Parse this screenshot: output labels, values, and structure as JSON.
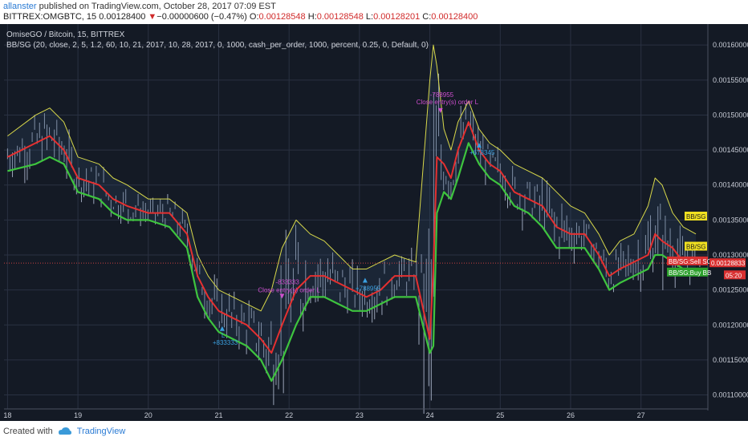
{
  "header": {
    "author": "allanster",
    "published": " published on TradingView.com, October 28, 2017 07:09 EST",
    "symbol": "BITTREX:OMGBTC, 15",
    "last": "0.00128400",
    "change": "−0.00000600 (−0.47%)",
    "open_label": "O:",
    "open": "0.00128548",
    "high_label": "H:",
    "high": "0.00128548",
    "low_label": "L:",
    "low": "0.00128201",
    "close_label": "C:",
    "close": "0.00128400"
  },
  "legend": {
    "title": "OmiseGO / Bitcoin, 15, BITTREX",
    "indicator": "BB/SG (20, close, 2, 5, 1.2, 60, 10, 21, 2017, 10, 28, 2017, 0, 1000, cash_per_order, 1000, percent, 0.25, 0, Default, 0)"
  },
  "footer": {
    "created_with": "Created with",
    "brand": "TradingView"
  },
  "colors": {
    "background": "#141a25",
    "grid": "#2a3142",
    "upper_band": "#d8d84a",
    "lower_band": "#3ec43e",
    "basis": "#e53030",
    "price_bar": "#9aa4b8",
    "current_line": "#c94040",
    "buy_marker": "#3aa0e0",
    "sell_marker": "#d04fd0"
  },
  "annotations": {
    "sell1": {
      "value": "-833333",
      "text": "Close entry(s) order L"
    },
    "buy1": {
      "label": "L",
      "value": "+833333"
    },
    "buy2": {
      "value": "+788955"
    },
    "sell2": {
      "value": "-788955",
      "text": "Close entry(s) order L"
    },
    "buy3": {
      "value": "+678345"
    }
  },
  "price_tags": {
    "bbsg_upper": "BB/SG",
    "bbsg_lower": "BB/SG",
    "sell_sg": "BB/SG:Sell SG",
    "current_price": "0.00128833",
    "buy_bb": "BB/SG:Buy BB",
    "countdown": "05:20"
  },
  "chart_data": {
    "type": "line",
    "ylim": [
      0.00108,
      0.00163
    ],
    "y_ticks": [
      "0.00160000",
      "0.00155000",
      "0.00150000",
      "0.00145000",
      "0.00140000",
      "0.00135000",
      "0.00130000",
      "0.00125000",
      "0.00120000",
      "0.00115000",
      "0.00110000"
    ],
    "x_ticks": [
      "18",
      "19",
      "20",
      "21",
      "22",
      "23",
      "24",
      "25",
      "26",
      "27"
    ],
    "x": [
      18.0,
      18.4,
      18.6,
      18.8,
      19.0,
      19.3,
      19.5,
      19.7,
      20.0,
      20.3,
      20.55,
      20.7,
      20.85,
      21.0,
      21.2,
      21.4,
      21.6,
      21.75,
      21.9,
      22.1,
      22.3,
      22.5,
      22.7,
      22.9,
      23.1,
      23.3,
      23.5,
      23.8,
      24.0,
      24.05,
      24.1,
      24.2,
      24.3,
      24.4,
      24.55,
      24.7,
      24.85,
      25.0,
      25.2,
      25.4,
      25.6,
      25.8,
      26.0,
      26.2,
      26.4,
      26.55,
      26.7,
      26.9,
      27.1,
      27.2,
      27.3,
      27.45,
      27.6,
      27.78
    ],
    "series": [
      {
        "name": "Upper",
        "values": [
          0.00147,
          0.0015,
          0.00151,
          0.00149,
          0.00144,
          0.00143,
          0.00141,
          0.0014,
          0.00138,
          0.00138,
          0.00136,
          0.0013,
          0.00127,
          0.00125,
          0.00124,
          0.00123,
          0.00122,
          0.00125,
          0.00131,
          0.00135,
          0.00133,
          0.00132,
          0.0013,
          0.00128,
          0.00128,
          0.00129,
          0.0013,
          0.00129,
          0.00155,
          0.0016,
          0.00157,
          0.00148,
          0.00145,
          0.00149,
          0.00152,
          0.00148,
          0.00146,
          0.00145,
          0.00143,
          0.00142,
          0.00141,
          0.00139,
          0.00137,
          0.00136,
          0.00133,
          0.0013,
          0.00132,
          0.00133,
          0.00137,
          0.00141,
          0.0014,
          0.00136,
          0.00134,
          0.00133
        ]
      },
      {
        "name": "Basis",
        "values": [
          0.00144,
          0.00146,
          0.00147,
          0.00145,
          0.00141,
          0.0014,
          0.00138,
          0.00137,
          0.00136,
          0.00136,
          0.00133,
          0.00127,
          0.00124,
          0.00122,
          0.00121,
          0.0012,
          0.00118,
          0.00116,
          0.0012,
          0.00125,
          0.00127,
          0.00127,
          0.00126,
          0.00125,
          0.00124,
          0.00125,
          0.00127,
          0.00127,
          0.00118,
          0.00128,
          0.00144,
          0.00143,
          0.00141,
          0.00145,
          0.00149,
          0.00145,
          0.00143,
          0.00142,
          0.00139,
          0.00138,
          0.00137,
          0.00134,
          0.00133,
          0.00133,
          0.0013,
          0.00127,
          0.00128,
          0.00129,
          0.0013,
          0.00133,
          0.00132,
          0.00131,
          0.00129,
          0.00129
        ]
      },
      {
        "name": "Lower",
        "values": [
          0.00142,
          0.00143,
          0.00144,
          0.00143,
          0.00139,
          0.00138,
          0.00136,
          0.00135,
          0.00135,
          0.00134,
          0.00131,
          0.00124,
          0.00121,
          0.00119,
          0.00118,
          0.00117,
          0.00115,
          0.00112,
          0.00115,
          0.0012,
          0.00124,
          0.00124,
          0.00123,
          0.00122,
          0.00122,
          0.00123,
          0.00124,
          0.00124,
          0.00116,
          0.00117,
          0.00136,
          0.00139,
          0.00138,
          0.00141,
          0.00146,
          0.00143,
          0.00141,
          0.0014,
          0.00137,
          0.00136,
          0.00134,
          0.00131,
          0.00131,
          0.00131,
          0.00128,
          0.00125,
          0.00126,
          0.00127,
          0.00128,
          0.0013,
          0.0013,
          0.00129,
          0.00128,
          0.00128
        ]
      }
    ]
  }
}
